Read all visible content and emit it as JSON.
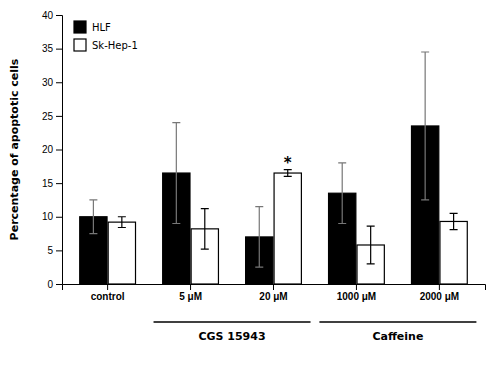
{
  "chart_data": {
    "type": "bar",
    "categories": [
      "control",
      "5 μM",
      "20 μM",
      "1000 μM",
      "2000 μM"
    ],
    "series": [
      {
        "name": "HLF",
        "color": "#000000",
        "values": [
          10.0,
          16.5,
          7.0,
          13.5,
          23.5
        ],
        "errors": [
          2.5,
          7.5,
          4.5,
          4.5,
          11.0
        ]
      },
      {
        "name": "Sk-Hep-1",
        "color": "#ffffff",
        "values": [
          9.2,
          8.2,
          16.5,
          5.8,
          9.3
        ],
        "errors": [
          0.8,
          3.0,
          0.5,
          2.8,
          1.2
        ]
      }
    ],
    "y_label": "Percentage of apoptotic cells",
    "ylim": [
      0,
      40
    ],
    "yticks": [
      0,
      5,
      10,
      15,
      20,
      25,
      30,
      35,
      40
    ],
    "legend": "upper left",
    "annotations": [
      {
        "text": "*",
        "series": "Sk-Hep-1",
        "category": "20 μM"
      },
      {
        "text": "CGS 15943",
        "categories": [
          "5 μM",
          "20 μM"
        ]
      },
      {
        "text": "Caffeine",
        "categories": [
          "1000 μM",
          "2000 μM"
        ]
      }
    ]
  }
}
